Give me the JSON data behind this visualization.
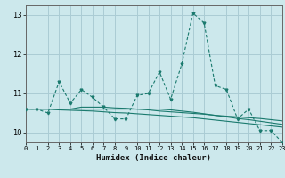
{
  "xlabel": "Humidex (Indice chaleur)",
  "bg_color": "#cce8ec",
  "grid_color": "#aaccd4",
  "line_color": "#1a7a6e",
  "x_data": [
    0,
    1,
    2,
    3,
    4,
    5,
    6,
    7,
    8,
    9,
    10,
    11,
    12,
    13,
    14,
    15,
    16,
    17,
    18,
    19,
    20,
    21,
    22,
    23
  ],
  "y_main": [
    10.6,
    10.6,
    10.5,
    11.3,
    10.75,
    11.1,
    10.9,
    10.65,
    10.35,
    10.35,
    10.95,
    11.0,
    11.55,
    10.85,
    11.75,
    13.05,
    12.8,
    11.2,
    11.1,
    10.35,
    10.6,
    10.05,
    10.05,
    9.75
  ],
  "y_trend1": [
    10.6,
    10.6,
    10.6,
    10.6,
    10.6,
    10.65,
    10.65,
    10.65,
    10.63,
    10.62,
    10.6,
    10.58,
    10.55,
    10.53,
    10.51,
    10.49,
    10.47,
    10.44,
    10.42,
    10.4,
    10.38,
    10.36,
    10.33,
    10.3
  ],
  "y_trend2": [
    10.6,
    10.6,
    10.6,
    10.58,
    10.57,
    10.56,
    10.55,
    10.53,
    10.51,
    10.5,
    10.48,
    10.46,
    10.44,
    10.42,
    10.4,
    10.38,
    10.35,
    10.32,
    10.29,
    10.26,
    10.23,
    10.2,
    10.17,
    10.14
  ],
  "y_trend3": [
    10.6,
    10.6,
    10.6,
    10.6,
    10.6,
    10.6,
    10.6,
    10.6,
    10.6,
    10.6,
    10.6,
    10.6,
    10.6,
    10.58,
    10.55,
    10.52,
    10.48,
    10.44,
    10.4,
    10.36,
    10.33,
    10.29,
    10.25,
    10.21
  ],
  "xlim": [
    0,
    23
  ],
  "ylim": [
    9.75,
    13.25
  ],
  "yticks": [
    10,
    11,
    12,
    13
  ],
  "xticks": [
    0,
    1,
    2,
    3,
    4,
    5,
    6,
    7,
    8,
    9,
    10,
    11,
    12,
    13,
    14,
    15,
    16,
    17,
    18,
    19,
    20,
    21,
    22,
    23
  ]
}
